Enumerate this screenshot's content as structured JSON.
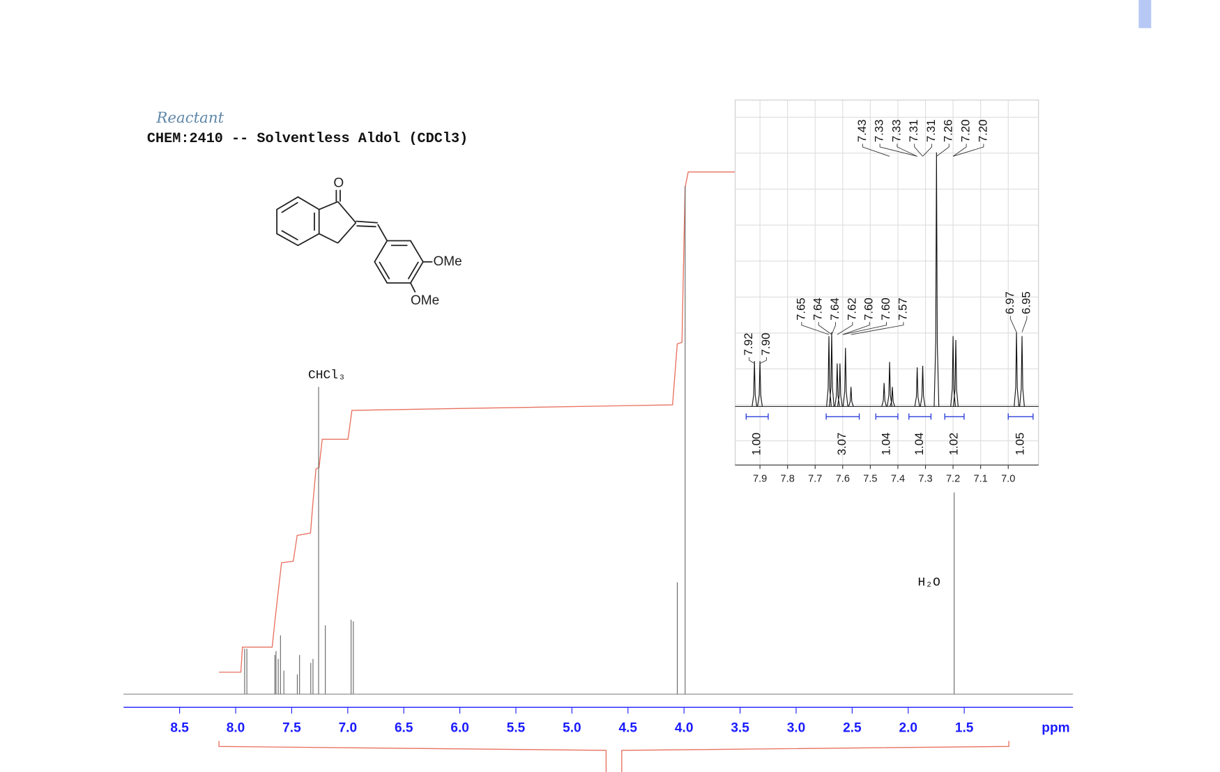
{
  "chart_data": {
    "type": "nmr",
    "title": "CHEM:2410 -- Solventless Aldol (CDCl3)",
    "note": "Reactant",
    "structure_labels": [
      "O",
      "OMe",
      "OMe"
    ],
    "solvent_labels": [
      "CHCl₃",
      "H₂O"
    ],
    "xlabel": "ppm",
    "xlim": [
      9.0,
      0.53
    ],
    "xticks": [
      8.5,
      {
        "value": 8,
        "label": "8.0"
      },
      7.5,
      {
        "value": 7,
        "label": "7.0"
      },
      6.5,
      {
        "value": 6,
        "label": "6.0"
      },
      5.5,
      {
        "value": 5,
        "label": "5.0"
      },
      4.5,
      {
        "value": 4,
        "label": "4.0"
      },
      3.5,
      {
        "value": 3,
        "label": "3.0"
      },
      2.5,
      {
        "value": 2,
        "label": "2.0"
      },
      1.5
    ],
    "ylim": [
      0,
      700
    ],
    "color": "#666666",
    "axis_color": "#1a1aff",
    "integral_color": "#e8705f",
    "peaks": {
      "ppm": [
        7.92,
        7.9,
        7.65,
        7.64,
        7.62,
        7.6,
        7.57,
        7.45,
        7.43,
        7.33,
        7.31,
        7.26,
        7.2,
        6.97,
        6.95,
        4.06,
        3.99,
        1.59
      ],
      "intensity": [
        58,
        58,
        50,
        55,
        45,
        75,
        30,
        25,
        50,
        40,
        45,
        393,
        88,
        95,
        93,
        143,
        650,
        258
      ]
    },
    "inset": {
      "xlim": [
        7.99,
        6.89
      ],
      "xticks": [
        7.9,
        7.8,
        7.7,
        7.6,
        7.5,
        7.4,
        7.3,
        7.2,
        7.1,
        {
          "value": 7,
          "label": "7.0"
        }
      ],
      "ylim": [
        0,
        400
      ],
      "color": "#111111",
      "integral_color": "#2b3ddb",
      "peaks": {
        "ppm": [
          7.92,
          7.9,
          7.65,
          7.64,
          7.62,
          7.61,
          7.59,
          7.57,
          7.45,
          7.43,
          7.42,
          7.33,
          7.31,
          7.26,
          7.2,
          7.19,
          6.97,
          6.95
        ],
        "intensity": [
          58,
          58,
          90,
          95,
          55,
          55,
          75,
          25,
          30,
          57,
          25,
          50,
          52,
          325,
          90,
          85,
          95,
          90
        ]
      },
      "peak_label_groups": [
        [
          "7.92",
          "7.90"
        ],
        [
          "7.65",
          "7.64",
          "7.64",
          "7.62",
          "7.60",
          "7.60",
          "7.57"
        ],
        [
          "7.43",
          "7.33",
          "7.33",
          "7.31",
          "7.31",
          "7.26",
          "7.20",
          "7.20"
        ],
        [
          "6.97",
          "6.95"
        ]
      ],
      "integrals": [
        {
          "label": "1.00",
          "ppm_range": [
            7.95,
            7.87
          ]
        },
        {
          "label": "3.07",
          "ppm_range": [
            7.66,
            7.54
          ]
        },
        {
          "label": "1.04",
          "ppm_range": [
            7.48,
            7.4
          ]
        },
        {
          "label": "1.04",
          "ppm_range": [
            7.36,
            7.28
          ]
        },
        {
          "label": "1.02",
          "ppm_range": [
            7.23,
            7.16
          ]
        },
        {
          "label": "1.05",
          "ppm_range": [
            7.0,
            6.91
          ]
        }
      ]
    }
  }
}
